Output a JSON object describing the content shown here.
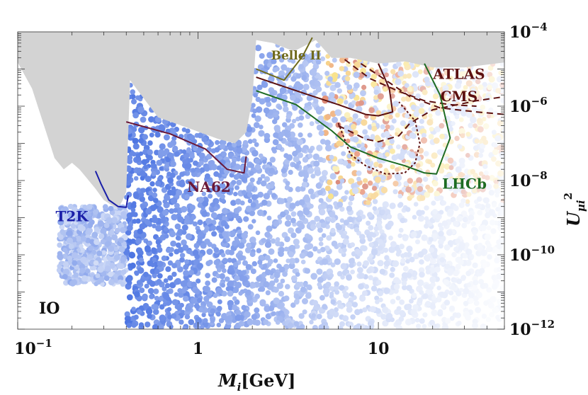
{
  "chart_data": {
    "type": "scatter",
    "title": "",
    "xlabel_main": "M",
    "xlabel_sub": "i",
    "xlabel_unit": "[GeV]",
    "ylabel_main": "U",
    "ylabel_sub": "μi",
    "ylabel_sup": "2",
    "x_scale": "log",
    "y_scale": "log",
    "xlim": [
      0.1,
      50
    ],
    "ylim": [
      1e-12,
      0.0001
    ],
    "x_ticks": [
      {
        "value": 0.1,
        "base": "10",
        "exp": "−1"
      },
      {
        "value": 1,
        "label": "1"
      },
      {
        "value": 10,
        "label": "10"
      }
    ],
    "y_ticks": [
      {
        "value": 0.0001,
        "base": "10",
        "exp": "−4"
      },
      {
        "value": 1e-06,
        "base": "10",
        "exp": "−6"
      },
      {
        "value": 1e-08,
        "base": "10",
        "exp": "−8"
      },
      {
        "value": 1e-10,
        "base": "10",
        "exp": "−10"
      },
      {
        "value": 1e-12,
        "base": "10",
        "exp": "−12"
      }
    ],
    "corner_label": "IO",
    "colors": {
      "excluded": "#d3d3d3",
      "points_low": "#3f6ae0",
      "points_high": "#f5d040",
      "points_hot": "#d9542a",
      "T2K": "#1a1fa8",
      "NA62": "#6a1838",
      "Belle II": "#6f6a1c",
      "ATLAS": "#5c1010",
      "CMS": "#5c1010",
      "LHCb": "#1d6b22"
    },
    "excluded_region_upper": [
      [
        0.1,
        1.5e-05
      ],
      [
        0.12,
        3e-06
      ],
      [
        0.14,
        3e-07
      ],
      [
        0.16,
        4e-08
      ],
      [
        0.18,
        2e-08
      ],
      [
        0.2,
        3e-08
      ],
      [
        0.22,
        2e-08
      ],
      [
        0.24,
        1.2e-08
      ],
      [
        0.27,
        6e-09
      ],
      [
        0.3,
        3e-09
      ],
      [
        0.33,
        2.2e-09
      ],
      [
        0.36,
        1.8e-09
      ],
      [
        0.38,
        2.8e-09
      ],
      [
        0.4,
        5e-09
      ],
      [
        0.42,
        5e-06
      ],
      [
        0.6,
        5e-07
      ],
      [
        0.9,
        2.5e-07
      ],
      [
        1.3,
        1.3e-07
      ],
      [
        1.6,
        1e-07
      ],
      [
        1.85,
        2e-07
      ],
      [
        2.0,
        1.5e-06
      ],
      [
        2.1,
        6e-05
      ],
      [
        2.6,
        5e-05
      ],
      [
        3.4,
        3e-05
      ],
      [
        4.5,
        6e-05
      ],
      [
        5.5,
        2e-05
      ],
      [
        7,
        2e-05
      ],
      [
        10,
        1.4e-05
      ],
      [
        14,
        1.6e-05
      ],
      [
        20,
        1.1e-05
      ],
      [
        30,
        1.1e-05
      ],
      [
        50,
        1.5e-05
      ]
    ],
    "sensitivity_curves": [
      {
        "name": "T2K",
        "style": "solid",
        "points": [
          [
            0.27,
            1.8e-08
          ],
          [
            0.29,
            8e-09
          ],
          [
            0.32,
            3e-09
          ],
          [
            0.36,
            2e-09
          ],
          [
            0.4,
            1.9e-09
          ],
          [
            0.41,
            4e-09
          ]
        ]
      },
      {
        "name": "NA62",
        "style": "solid",
        "points": [
          [
            0.4,
            3.8e-07
          ],
          [
            0.7,
            1.8e-07
          ],
          [
            1.1,
            7e-08
          ],
          [
            1.45,
            2e-08
          ],
          [
            1.8,
            1.6e-08
          ],
          [
            1.85,
            4.5e-08
          ]
        ]
      },
      {
        "name": "Belle II",
        "style": "solid",
        "points": [
          [
            2.1,
            1e-05
          ],
          [
            3.0,
            5e-06
          ],
          [
            3.8,
            2.2e-05
          ],
          [
            4.3,
            7e-05
          ]
        ]
      },
      {
        "name": "ATLAS / CMS",
        "style": "solid",
        "points": [
          [
            2.1,
            6e-06
          ],
          [
            4,
            2.1e-06
          ],
          [
            6,
            1.1e-06
          ],
          [
            8.5,
            6e-07
          ],
          [
            10,
            5.5e-07
          ],
          [
            12,
            7e-07
          ],
          [
            11.5,
            3e-06
          ],
          [
            10,
            1.4e-05
          ]
        ]
      },
      {
        "name": "ATLAS / CMS",
        "style": "dashed",
        "points": [
          [
            6,
            3e-07
          ],
          [
            8.5,
            1.3e-07
          ],
          [
            10,
            1.1e-07
          ],
          [
            13,
            1.6e-07
          ],
          [
            15,
            3.5e-07
          ],
          [
            20,
            8e-07
          ],
          [
            35,
            1.4e-06
          ],
          [
            50,
            1.8e-06
          ]
        ]
      },
      {
        "name": "ATLAS / CMS",
        "style": "dashed",
        "points": [
          [
            8,
            1.4e-05
          ],
          [
            11,
            5e-06
          ],
          [
            15,
            1.8e-06
          ],
          [
            22,
            9e-07
          ],
          [
            35,
            7e-07
          ],
          [
            50,
            6e-07
          ]
        ]
      },
      {
        "name": "ATLAS / CMS",
        "style": "dashed",
        "points": [
          [
            6.5,
            1.8e-05
          ],
          [
            9,
            5.5e-06
          ],
          [
            13,
            2.5e-06
          ],
          [
            18,
            1.4e-06
          ],
          [
            25,
            1.1e-06
          ],
          [
            35,
            1e-06
          ]
        ]
      },
      {
        "name": "ATLAS / CMS",
        "style": "dotted",
        "points": [
          [
            6,
            3.5e-07
          ],
          [
            7,
            5e-08
          ],
          [
            8.5,
            2.5e-08
          ],
          [
            11,
            1.5e-08
          ],
          [
            14,
            1.6e-08
          ],
          [
            16,
            3e-08
          ],
          [
            17,
            1e-07
          ],
          [
            16,
            4e-07
          ],
          [
            13,
            1.3e-06
          ]
        ]
      },
      {
        "name": "LHCb",
        "style": "solid",
        "points": [
          [
            2.1,
            2.6e-06
          ],
          [
            3.5,
            1.1e-06
          ],
          [
            5.5,
            2.2e-07
          ],
          [
            7,
            8e-08
          ],
          [
            10,
            4e-08
          ],
          [
            14,
            2.5e-08
          ],
          [
            18,
            1.6e-08
          ],
          [
            21,
            1.5e-08
          ],
          [
            25,
            1.4e-07
          ],
          [
            22,
            2e-06
          ],
          [
            18,
            1.4e-05
          ]
        ]
      }
    ],
    "curve_labels": [
      {
        "text": "T2K",
        "x": 0.2,
        "y": 8e-10,
        "color": "#1a1fa8"
      },
      {
        "text": "NA62",
        "x": 1.15,
        "y": 5e-09,
        "color": "#6a1838"
      },
      {
        "text": "Belle II",
        "x": 3.5,
        "y": 1.8e-05,
        "color": "#6f6a1c"
      },
      {
        "text": "ATLAS",
        "x": 28,
        "y": 5.4e-06,
        "color": "#5c1010"
      },
      {
        "text": "CMS",
        "x": 28,
        "y": 1.35e-06,
        "color": "#5c1010"
      },
      {
        "text": "LHCb",
        "x": 30,
        "y": 6e-09,
        "color": "#1d6b22"
      }
    ]
  }
}
